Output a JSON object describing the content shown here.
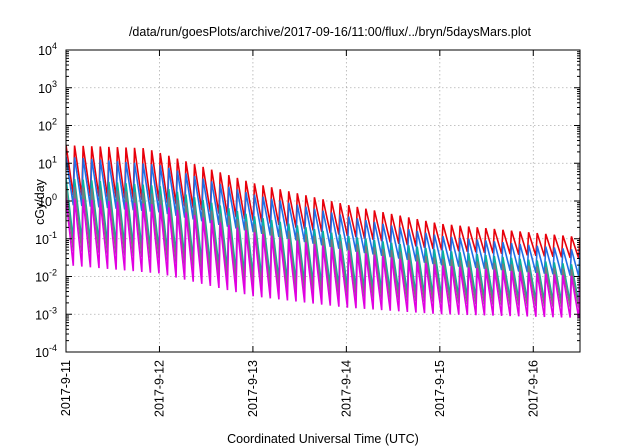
{
  "chart_data": {
    "type": "line",
    "title": "/data/run/goesPlots/archive/2017-09-16/11:00/flux/../bryn/5daysMars.plot",
    "xlabel": "Coordinated Universal Time (UTC)",
    "ylabel": "cGy/day",
    "yscale": "log",
    "ylim": [
      0.0001,
      10000
    ],
    "xlim": [
      "2017-09-11",
      "2017-09-16T12:00"
    ],
    "y_ticks": [
      {
        "base": "10",
        "exp": "-4",
        "value": 0.0001
      },
      {
        "base": "10",
        "exp": "-3",
        "value": 0.001
      },
      {
        "base": "10",
        "exp": "-2",
        "value": 0.01
      },
      {
        "base": "10",
        "exp": "-1",
        "value": 0.1
      },
      {
        "base": "10",
        "exp": "0",
        "value": 1
      },
      {
        "base": "10",
        "exp": "1",
        "value": 10
      },
      {
        "base": "10",
        "exp": "2",
        "value": 100
      },
      {
        "base": "10",
        "exp": "3",
        "value": 1000
      },
      {
        "base": "10",
        "exp": "4",
        "value": 10000
      }
    ],
    "x_ticks": [
      "2017-9-11",
      "2017-9-12",
      "2017-9-13",
      "2017-9-14",
      "2017-9-15",
      "2017-9-16"
    ],
    "grid": true,
    "sawtooth_cycles": 60,
    "series": [
      {
        "color": "#e8000b",
        "peaks": [
          [
            0,
            30
          ],
          [
            0.85,
            25
          ],
          [
            2.0,
            3
          ],
          [
            3.0,
            0.8
          ],
          [
            4.0,
            0.25
          ],
          [
            5.5,
            0.11
          ]
        ],
        "troughs": [
          [
            0,
            1.5
          ],
          [
            1.0,
            1.0
          ],
          [
            2.0,
            0.3
          ],
          [
            3.0,
            0.12
          ],
          [
            4.0,
            0.05
          ],
          [
            5.5,
            0.03
          ]
        ]
      },
      {
        "color": "#1f6fe6",
        "peaks": [
          [
            0,
            15
          ],
          [
            1.0,
            9
          ],
          [
            2.0,
            1.5
          ],
          [
            3.0,
            0.4
          ],
          [
            4.0,
            0.12
          ],
          [
            5.5,
            0.05
          ]
        ],
        "troughs": [
          [
            0,
            0.8
          ],
          [
            1.0,
            0.5
          ],
          [
            2.0,
            0.15
          ],
          [
            3.0,
            0.05
          ],
          [
            4.0,
            0.02
          ],
          [
            5.5,
            0.01
          ]
        ]
      },
      {
        "color": "#0ab39c",
        "peaks": [
          [
            0,
            4
          ],
          [
            1.0,
            2.5
          ],
          [
            2.0,
            0.4
          ],
          [
            3.0,
            0.12
          ],
          [
            4.0,
            0.05
          ],
          [
            5.5,
            0.02
          ]
        ],
        "troughs": [
          [
            0,
            0.1
          ],
          [
            1.0,
            0.05
          ],
          [
            2.0,
            0.01
          ],
          [
            3.0,
            0.005
          ],
          [
            4.0,
            0.003
          ],
          [
            5.5,
            0.002
          ]
        ]
      },
      {
        "color": "#7a7a7a",
        "peaks": [
          [
            0,
            2.5
          ],
          [
            1.0,
            1.5
          ],
          [
            2.0,
            0.25
          ],
          [
            3.0,
            0.08
          ],
          [
            4.0,
            0.03
          ],
          [
            5.5,
            0.015
          ]
        ],
        "troughs": [
          [
            0,
            0.05
          ],
          [
            1.0,
            0.03
          ],
          [
            2.0,
            0.006
          ],
          [
            3.0,
            0.003
          ],
          [
            4.0,
            0.002
          ],
          [
            5.5,
            0.0015
          ]
        ]
      },
      {
        "color": "#e100e1",
        "peaks": [
          [
            0,
            1.2
          ],
          [
            1.0,
            0.8
          ],
          [
            2.0,
            0.15
          ],
          [
            3.0,
            0.05
          ],
          [
            4.0,
            0.02
          ],
          [
            5.5,
            0.01
          ]
        ],
        "troughs": [
          [
            0,
            0.02
          ],
          [
            1.0,
            0.012
          ],
          [
            2.0,
            0.003
          ],
          [
            3.0,
            0.0015
          ],
          [
            4.0,
            0.001
          ],
          [
            5.5,
            0.0008
          ]
        ]
      }
    ]
  }
}
